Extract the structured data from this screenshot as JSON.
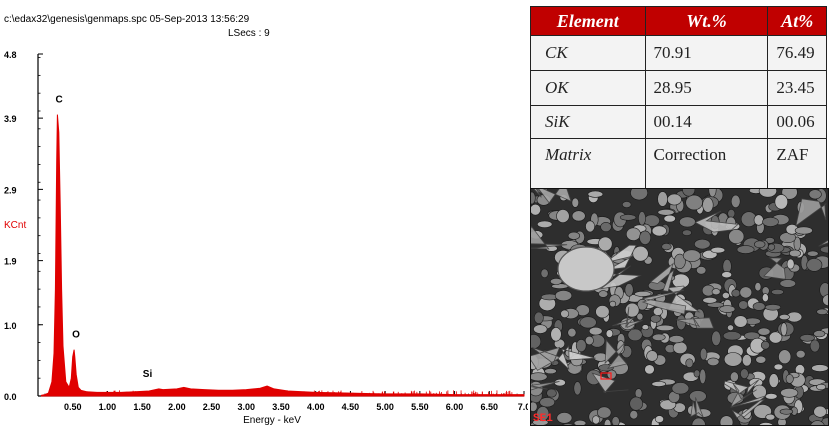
{
  "chart_data": {
    "type": "line",
    "header": "c:\\edax32\\genesis\\genmaps.spc  05-Sep-2013 13:56:29",
    "subheader": "LSecs : 9",
    "xlabel": "Energy - keV",
    "ylabel": "KCnt",
    "xlim": [
      0,
      7.0
    ],
    "ylim": [
      0,
      4.8
    ],
    "x_ticks": [
      "0.50",
      "1.00",
      "1.50",
      "2.00",
      "2.50",
      "3.00",
      "3.50",
      "4.00",
      "4.50",
      "5.00",
      "5.50",
      "6.00",
      "6.50",
      "7.0"
    ],
    "y_ticks": [
      "4.8",
      "3.9",
      "2.9",
      "1.9",
      "1.0",
      "0.0"
    ],
    "series": [
      {
        "x": [
          0.05,
          0.1,
          0.15,
          0.2,
          0.23,
          0.25,
          0.27,
          0.28,
          0.3,
          0.32,
          0.34,
          0.36,
          0.4,
          0.45,
          0.48,
          0.5,
          0.52,
          0.53,
          0.55,
          0.58,
          0.62,
          0.7,
          0.85,
          1.0,
          1.2,
          1.4,
          1.6,
          1.74,
          1.8,
          2.0,
          2.1,
          2.2,
          2.4,
          2.6,
          2.8,
          3.0,
          3.2,
          3.3,
          3.4,
          3.6,
          4.0,
          4.5,
          5.0,
          5.5,
          6.0,
          6.5,
          7.0
        ],
        "y": [
          0.01,
          0.02,
          0.04,
          0.2,
          0.6,
          1.5,
          3.3,
          3.95,
          3.7,
          2.7,
          1.5,
          0.7,
          0.2,
          0.12,
          0.25,
          0.55,
          0.65,
          0.55,
          0.3,
          0.12,
          0.08,
          0.06,
          0.05,
          0.05,
          0.05,
          0.06,
          0.07,
          0.1,
          0.09,
          0.1,
          0.12,
          0.1,
          0.09,
          0.08,
          0.08,
          0.09,
          0.11,
          0.14,
          0.1,
          0.07,
          0.05,
          0.04,
          0.03,
          0.03,
          0.02,
          0.02,
          0.02
        ]
      }
    ],
    "annotations": [
      {
        "label": "C",
        "x": 0.28,
        "y": 3.95
      },
      {
        "label": "O",
        "x": 0.52,
        "y": 0.65
      },
      {
        "label": "Si",
        "x": 1.74,
        "y": 0.1
      }
    ],
    "colors": {
      "spectrum": "#e00000",
      "axis": "#000000"
    }
  },
  "table": {
    "headers": [
      "Element",
      "Wt.%",
      "At%"
    ],
    "rows": [
      [
        "CK",
        "70.91",
        "76.49"
      ],
      [
        "OK",
        "28.95",
        "23.45"
      ],
      [
        "SiK",
        "00.14",
        "00.06"
      ],
      [
        "Matrix",
        "Correction",
        "ZAF"
      ]
    ]
  },
  "image_label": "SE1"
}
